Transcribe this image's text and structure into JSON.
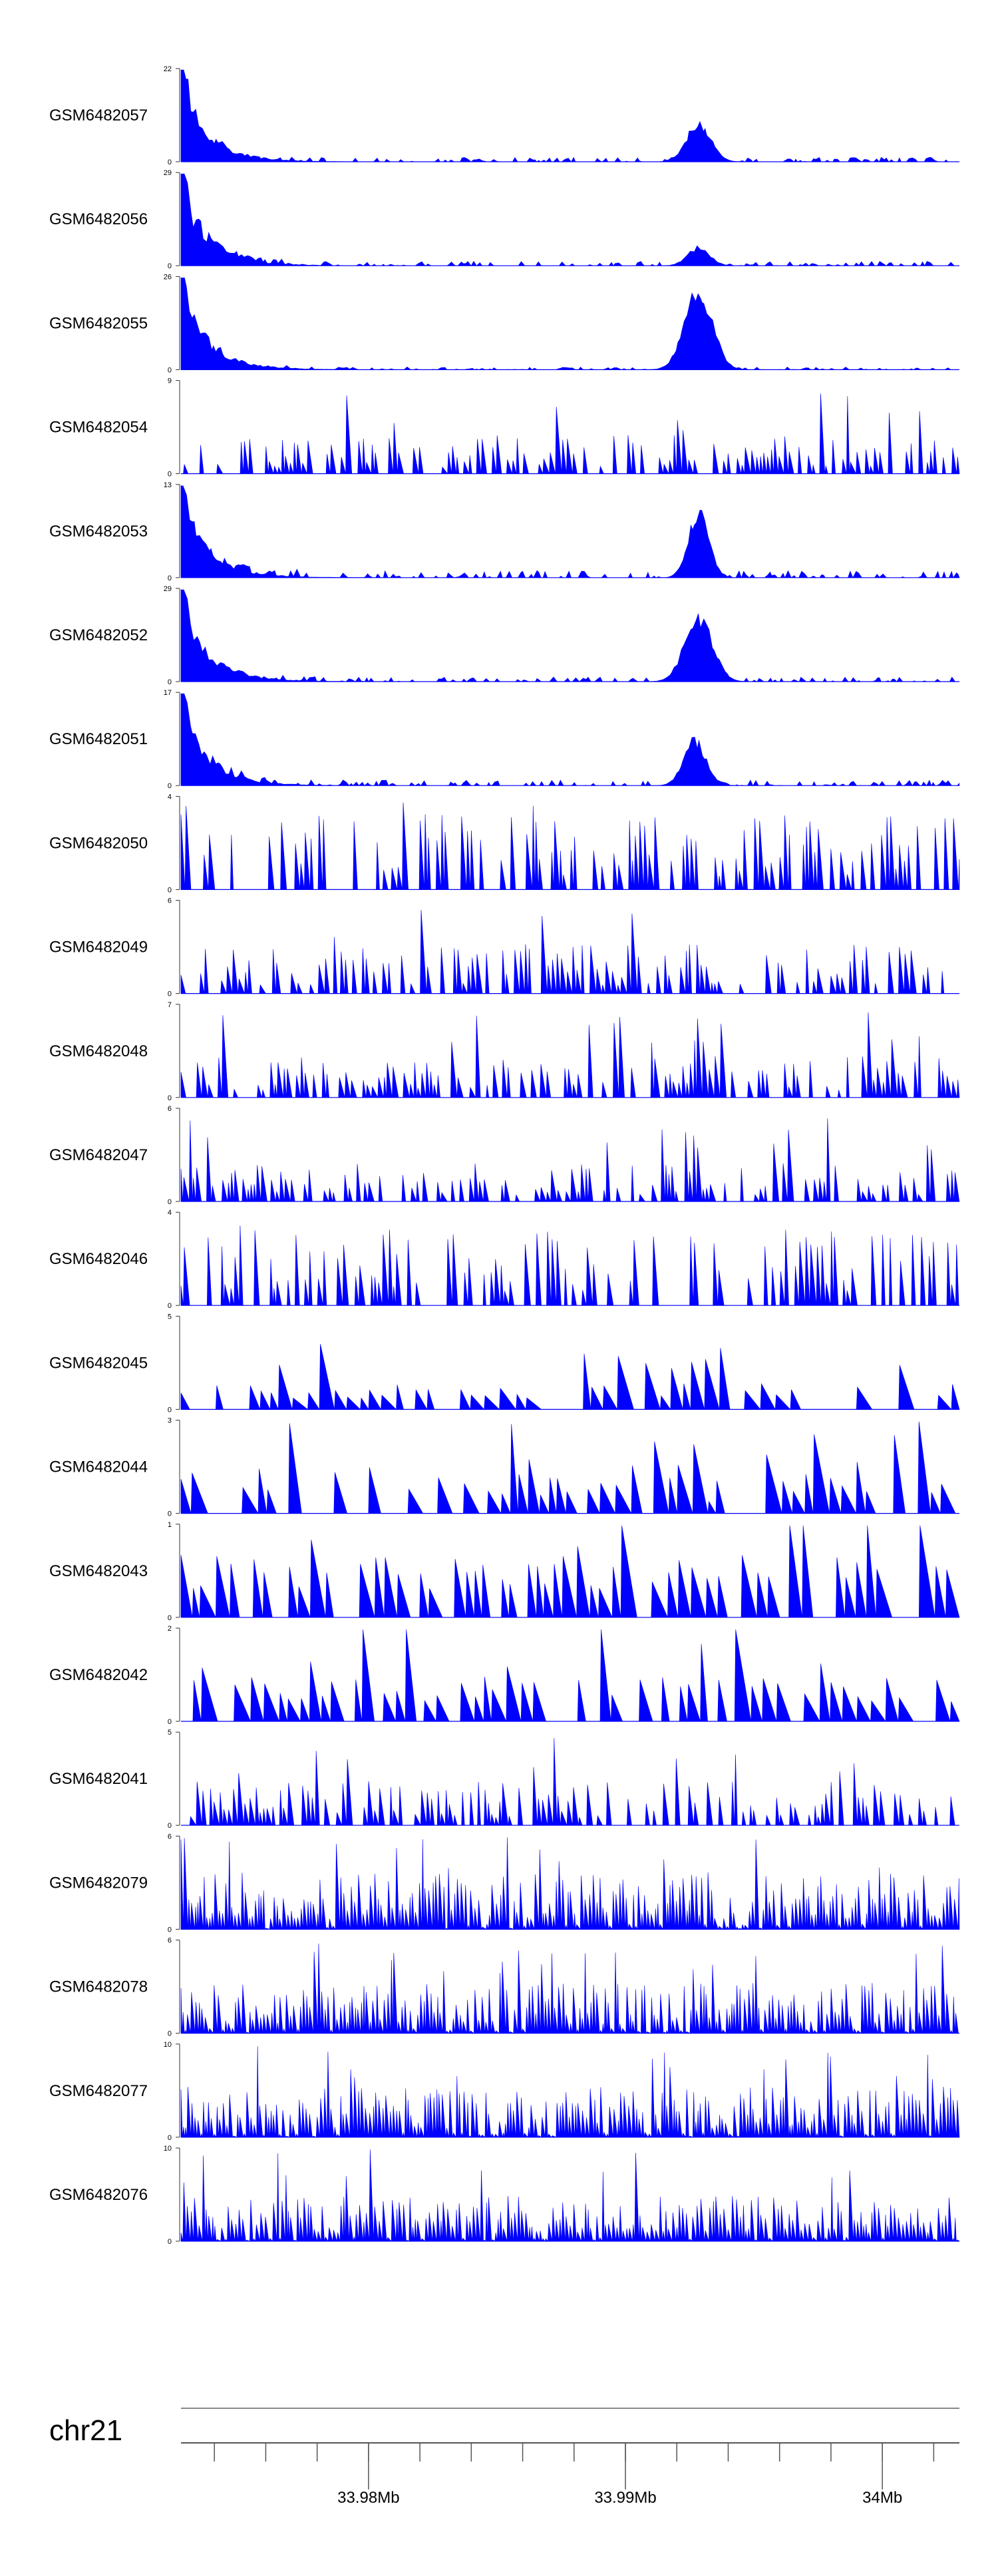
{
  "chart_data": {
    "type": "area",
    "description_free": true,
    "colors": {
      "signal": "#0000ff",
      "axis": "#333333"
    },
    "chromosome": "chr21",
    "x_axis": {
      "range_mb": [
        33.9727,
        34.003
      ],
      "major_ticks": [
        {
          "value": 33.98,
          "label": "33.98Mb"
        },
        {
          "value": 33.99,
          "label": "33.99Mb"
        },
        {
          "value": 34.0,
          "label": "34Mb"
        }
      ],
      "minor_tick_step_mb": 0.002
    },
    "tracks": [
      {
        "name": "GSM6482057",
        "ymax": 22,
        "ymax_label": "22",
        "ymin_label": "0",
        "profile": "early",
        "peaks": [
          {
            "pos": 0.665,
            "h": 0.46,
            "w": 0.022
          }
        ],
        "base": 0.05
      },
      {
        "name": "GSM6482056",
        "ymax": 29,
        "ymax_label": "29",
        "ymin_label": "0",
        "profile": "early",
        "peaks": [
          {
            "pos": 0.665,
            "h": 0.22,
            "w": 0.02
          }
        ],
        "base": 0.05
      },
      {
        "name": "GSM6482055",
        "ymax": 26,
        "ymax_label": "26",
        "ymin_label": "0",
        "profile": "early",
        "peaks": [
          {
            "pos": 0.665,
            "h": 0.95,
            "w": 0.025
          }
        ],
        "base": 0.03
      },
      {
        "name": "GSM6482054",
        "ymax": 9,
        "ymax_label": "9",
        "ymin_label": "0",
        "profile": "spiky",
        "peaks": [
          {
            "pos": 0.64,
            "h": 0.8,
            "w": 0.01
          }
        ],
        "base": 0.35
      },
      {
        "name": "GSM6482053",
        "ymax": 13,
        "ymax_label": "13",
        "ymin_label": "0",
        "profile": "early",
        "peaks": [
          {
            "pos": 0.665,
            "h": 0.82,
            "w": 0.018
          }
        ],
        "base": 0.08
      },
      {
        "name": "GSM6482052",
        "ymax": 29,
        "ymax_label": "29",
        "ymin_label": "0",
        "profile": "early",
        "peaks": [
          {
            "pos": 0.665,
            "h": 0.78,
            "w": 0.025
          }
        ],
        "base": 0.05
      },
      {
        "name": "GSM6482051",
        "ymax": 17,
        "ymax_label": "17",
        "ymin_label": "0",
        "profile": "early",
        "peaks": [
          {
            "pos": 0.66,
            "h": 0.55,
            "w": 0.02
          }
        ],
        "base": 0.06
      },
      {
        "name": "GSM6482050",
        "ymax": 4,
        "ymax_label": "4",
        "ymin_label": "0",
        "profile": "spiky",
        "peaks": [],
        "base": 0.7
      },
      {
        "name": "GSM6482049",
        "ymax": 6,
        "ymax_label": "6",
        "ymin_label": "0",
        "profile": "spiky",
        "peaks": [],
        "base": 0.45
      },
      {
        "name": "GSM6482048",
        "ymax": 7,
        "ymax_label": "7",
        "ymin_label": "0",
        "profile": "spiky",
        "peaks": [
          {
            "pos": 0.665,
            "h": 0.95,
            "w": 0.012
          }
        ],
        "base": 0.38
      },
      {
        "name": "GSM6482047",
        "ymax": 6,
        "ymax_label": "6",
        "ymin_label": "0",
        "profile": "spiky",
        "peaks": [
          {
            "pos": 0.66,
            "h": 0.82,
            "w": 0.008
          }
        ],
        "base": 0.35
      },
      {
        "name": "GSM6482046",
        "ymax": 4,
        "ymax_label": "4",
        "ymin_label": "0",
        "profile": "spiky",
        "peaks": [],
        "base": 0.72
      },
      {
        "name": "GSM6482045",
        "ymax": 5,
        "ymax_label": "5",
        "ymin_label": "0",
        "profile": "sparse",
        "peaks": [
          {
            "pos": 0.64,
            "h": 0.95,
            "w": 0.006
          }
        ],
        "base": 0.2
      },
      {
        "name": "GSM6482044",
        "ymax": 3,
        "ymax_label": "3",
        "ymin_label": "0",
        "profile": "sparse",
        "peaks": [
          {
            "pos": 0.65,
            "h": 0.95,
            "w": 0.02
          }
        ],
        "base": 0.33
      },
      {
        "name": "GSM6482043",
        "ymax": 1,
        "ymax_label": "1",
        "ymin_label": "0",
        "profile": "sparse",
        "peaks": [],
        "base": 0.5
      },
      {
        "name": "GSM6482042",
        "ymax": 2,
        "ymax_label": "2",
        "ymin_label": "0",
        "profile": "sparse",
        "peaks": [],
        "base": 0.35
      },
      {
        "name": "GSM6482041",
        "ymax": 5,
        "ymax_label": "5",
        "ymin_label": "0",
        "profile": "spiky",
        "peaks": [
          {
            "pos": 0.455,
            "h": 0.98,
            "w": 0.004
          }
        ],
        "base": 0.4
      },
      {
        "name": "GSM6482079",
        "ymax": 6,
        "ymax_label": "6",
        "ymin_label": "0",
        "profile": "dense",
        "peaks": [],
        "base": 0.55
      },
      {
        "name": "GSM6482078",
        "ymax": 6,
        "ymax_label": "6",
        "ymin_label": "0",
        "profile": "dense",
        "peaks": [],
        "base": 0.5
      },
      {
        "name": "GSM6482077",
        "ymax": 10,
        "ymax_label": "10",
        "ymin_label": "0",
        "profile": "dense",
        "peaks": [],
        "base": 0.5
      },
      {
        "name": "GSM6482076",
        "ymax": 10,
        "ymax_label": "10",
        "ymin_label": "0",
        "profile": "dense",
        "peaks": [],
        "base": 0.45
      }
    ],
    "grid": false,
    "legend": "none"
  }
}
